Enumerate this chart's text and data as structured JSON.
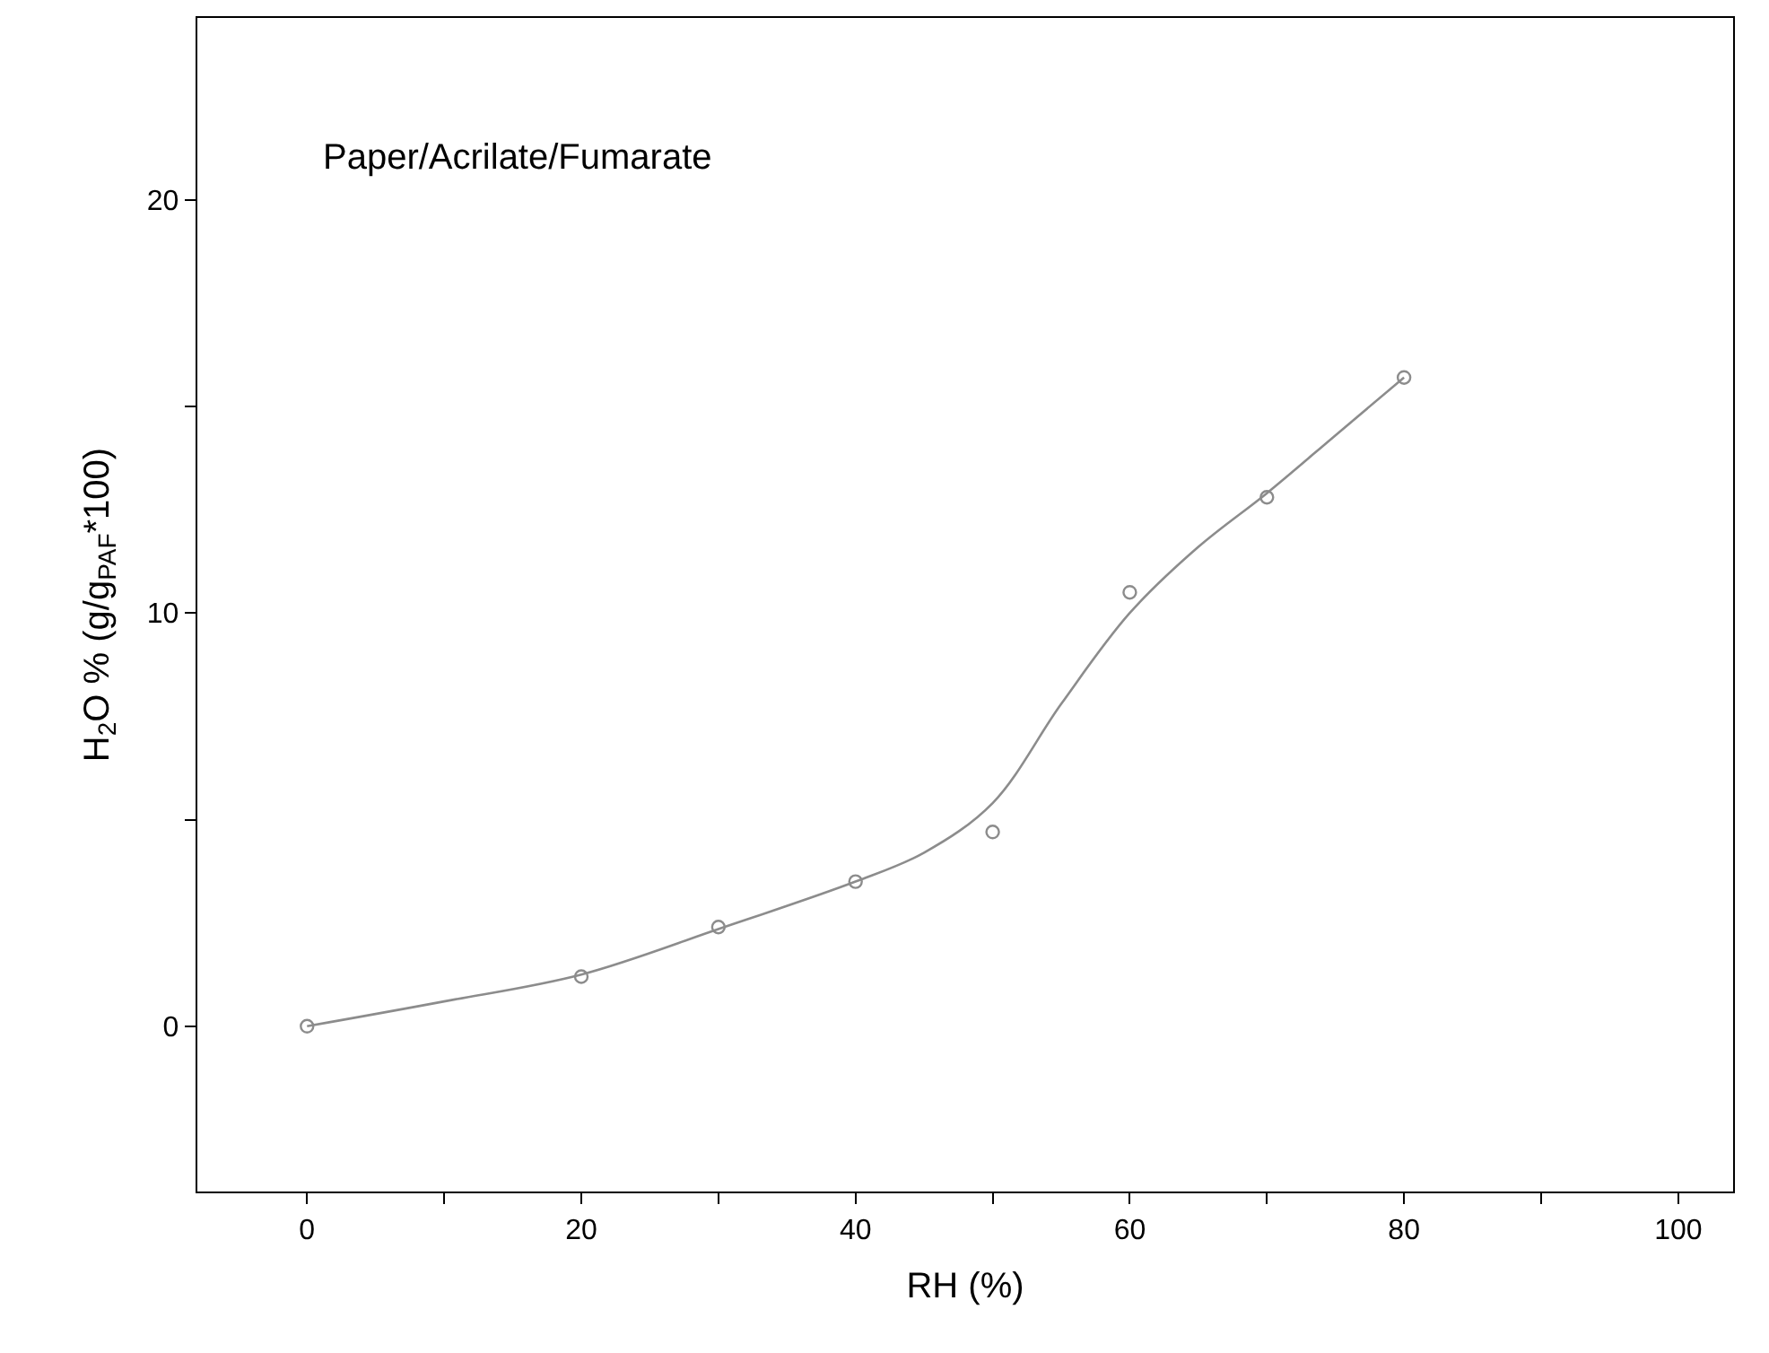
{
  "chart_data": {
    "type": "scatter",
    "xlabel": "RH (%)",
    "ylabel": "H$_{2}$O % (g/g$_{PAF}$*100)",
    "annotations": [
      "Paper/Acrilate/Fumarate"
    ],
    "xlim": [
      -8,
      104
    ],
    "ylim": [
      -4,
      24.4
    ],
    "xticks": [
      0,
      {
        "value": 10,
        "label": null
      },
      20,
      {
        "value": 30,
        "label": null
      },
      40,
      {
        "value": 50,
        "label": null
      },
      60,
      {
        "value": 70,
        "label": null
      },
      80,
      {
        "value": 90,
        "label": null
      },
      100
    ],
    "yticks": [
      0,
      {
        "value": 5,
        "label": null
      },
      10,
      {
        "value": 15,
        "label": null
      },
      20
    ],
    "legend": false,
    "series": [
      {
        "color": "#8c8c8c",
        "marker": "circle",
        "x": [
          0,
          20,
          30,
          40,
          50,
          60,
          70,
          80
        ],
        "values": [
          0,
          1.2,
          2.4,
          3.5,
          4.7,
          10.5,
          12.8,
          15.7
        ]
      },
      {
        "type": "line",
        "color": "#8c8c8c",
        "line_style": "solid",
        "x": [
          0,
          10,
          20,
          30,
          40,
          45,
          50,
          55,
          60,
          65,
          70,
          75,
          80
        ],
        "values": [
          0,
          0.6,
          1.25,
          2.35,
          3.5,
          4.2,
          5.4,
          7.8,
          10.0,
          11.6,
          12.9,
          14.3,
          15.7
        ]
      }
    ]
  }
}
